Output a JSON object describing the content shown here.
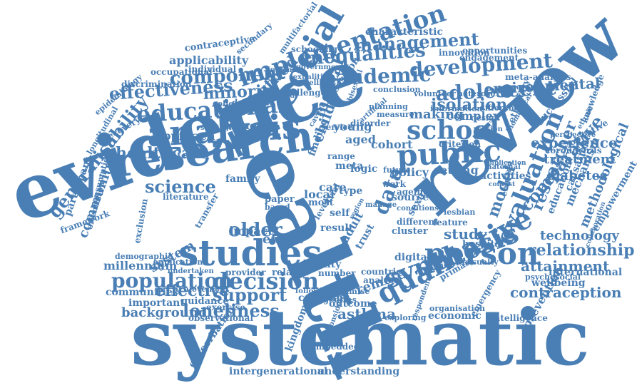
{
  "palette": {
    "text": "#4a7fb5",
    "background": "#ffffff"
  },
  "words": [
    "systematic",
    "evidence",
    "health",
    "review",
    "research",
    "studies",
    "analysis",
    "social",
    "public",
    "school",
    "educational",
    "person",
    "synthesis",
    "qualitative",
    "evaluation",
    "implementation",
    "inequalities",
    "management",
    "development",
    "adolescent",
    "pandemic",
    "component",
    "effectiveness",
    "minority",
    "method",
    "decision",
    "population",
    "support",
    "effective",
    "loneliness",
    "older",
    "science",
    "healthcare",
    "generalisability",
    "community",
    "relationship",
    "attainment",
    "contraception",
    "comparative",
    "methodological",
    "researcher",
    "experience",
    "treatment",
    "environmental",
    "isolation",
    "making",
    "complex",
    "mental",
    "child",
    "data",
    "study",
    "model",
    "remote",
    "asthma",
    "millennium",
    "system",
    "background",
    "communities",
    "important",
    "guidance",
    "observational",
    "intergenerational",
    "understanding",
    "embedded",
    "kingdom",
    "exacerbation",
    "prevention",
    "intelligence",
    "economic",
    "technology",
    "diabetes",
    "mechanism",
    "education",
    "causation",
    "international",
    "wellbeing",
    "characteristic",
    "innovation",
    "engagement",
    "opportunities",
    "contraceptive",
    "secondary",
    "applicability",
    "occupational",
    "individual",
    "discrimination",
    "meta-analysis",
    "successful",
    "knowledge",
    "objective",
    "coronavirus",
    "empowerment",
    "approach",
    "influence",
    "recovery",
    "participant",
    "consumption",
    "framework",
    "literature",
    "potential",
    "exclusion",
    "epidemiology",
    "longitudinal",
    "orientation",
    "database",
    "collection",
    "strategies",
    "information",
    "difference",
    "conclusion",
    "volunteer",
    "heterosexual",
    "planning",
    "measure",
    "disorder",
    "service",
    "young",
    "aged",
    "cohort",
    "criterion",
    "setting",
    "policy",
    "family",
    "local",
    "care",
    "type",
    "impact",
    "effect",
    "result",
    "adult",
    "trust",
    "work",
    "source",
    "sexual",
    "cluster",
    "digital",
    "feature",
    "lesbian",
    "hospital",
    "activities",
    "england",
    "psychosocial",
    "casualty",
    "patient",
    "primary",
    "quality",
    "number",
    "countrie",
    "analyse",
    "outcome",
    "optimise",
    "agencies",
    "cochrane",
    "following",
    "exploring",
    "organisation",
    "emergency",
    "demographic",
    "application",
    "undertaken",
    "provider",
    "related",
    "exercise",
    "achievement",
    "recession",
    "challenge",
    "ethnicity",
    "schooling",
    "design",
    "cross",
    "version",
    "multifactorial",
    "ageing",
    "different",
    "paper",
    "based",
    "logic",
    "meta",
    "range",
    "finding",
    "transfer",
    "trial",
    "self",
    "level",
    "most",
    "future",
    "conditions",
    "biomedical",
    "perspective",
    "ethnic",
    "artificial",
    "government",
    "sexualities",
    "modelling",
    "selected",
    "caveat",
    "bisexual",
    "income",
    "maternal",
    "implication",
    "contest",
    "collaboration",
    "considerations",
    "respondent",
    "manage",
    "region"
  ]
}
